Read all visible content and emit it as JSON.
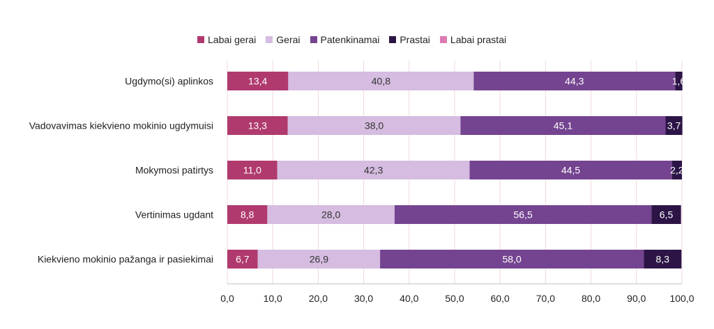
{
  "chart_data": {
    "type": "bar",
    "orientation": "horizontal",
    "stacked": true,
    "categories": [
      "Ugdymo(si) aplinkos",
      "Vadovavimas kiekvieno mokinio ugdymuisi",
      "Mokymosi patirtys",
      "Vertinimas ugdant",
      "Kiekvieno mokinio pažanga ir pasiekimai"
    ],
    "series": [
      {
        "name": "Labai gerai",
        "color": "#B03A6E",
        "values": [
          13.4,
          13.3,
          11.0,
          8.8,
          6.7
        ],
        "labels": [
          "13,4",
          "13,3",
          "11,0",
          "8,8",
          "6,7"
        ]
      },
      {
        "name": "Gerai",
        "color": "#D5BCE0",
        "values": [
          40.8,
          38.0,
          42.3,
          28.0,
          26.9
        ],
        "labels": [
          "40,8",
          "38,0",
          "42,3",
          "28,0",
          "26,9"
        ]
      },
      {
        "name": "Patenkinamai",
        "color": "#744490",
        "values": [
          44.3,
          45.1,
          44.5,
          56.5,
          58.0
        ],
        "labels": [
          "44,3",
          "45,1",
          "44,5",
          "56,5",
          "58,0"
        ]
      },
      {
        "name": "Prastai",
        "color": "#2C1546",
        "values": [
          1.6,
          3.7,
          2.2,
          6.5,
          8.3
        ],
        "labels": [
          "1,6",
          "3,7",
          "2,2",
          "6,5",
          "8,3"
        ]
      },
      {
        "name": "Labai prastai",
        "color": "#DB7BB2",
        "values": [
          0,
          0,
          0,
          0,
          0
        ],
        "labels": [
          "",
          "",
          "",
          "",
          ""
        ]
      }
    ],
    "xlim": [
      0,
      100
    ],
    "xticks": [
      "0,0",
      "10,0",
      "20,0",
      "30,0",
      "40,0",
      "50,0",
      "60,0",
      "70,0",
      "80,0",
      "90,0",
      "100,0"
    ],
    "grid": "vertical",
    "legend": "top"
  }
}
